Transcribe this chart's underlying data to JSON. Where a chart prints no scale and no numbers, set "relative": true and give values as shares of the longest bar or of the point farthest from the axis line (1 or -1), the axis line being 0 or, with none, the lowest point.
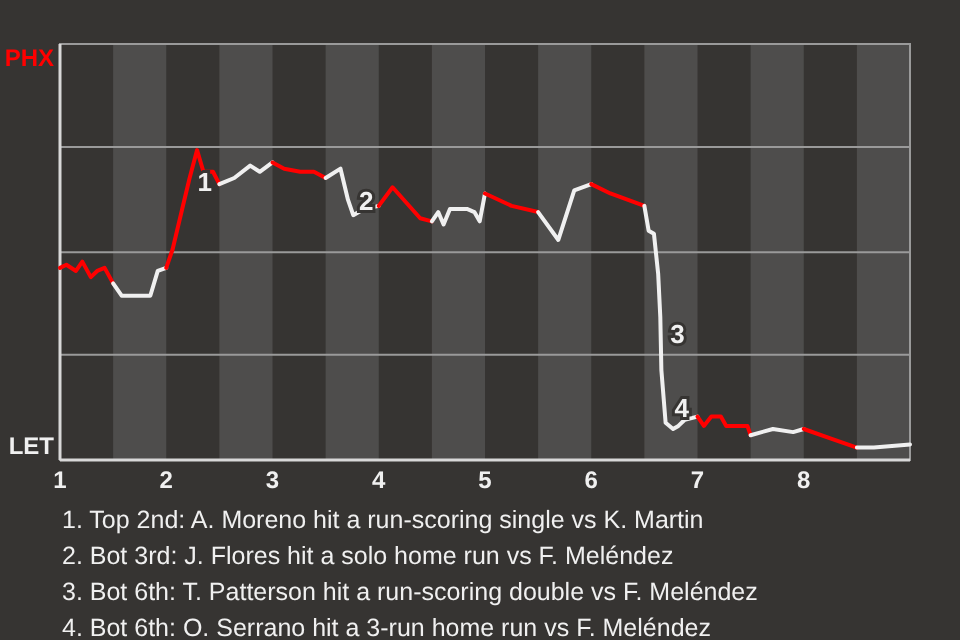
{
  "chart_data": {
    "type": "line",
    "relative": true,
    "xlim": [
      1,
      9
    ],
    "xticks": [
      1,
      2,
      3,
      4,
      5,
      6,
      7,
      8
    ],
    "ref_lines": [
      {
        "axis": "y",
        "value": 0.34,
        "color": "#9a9a9a"
      },
      {
        "axis": "y",
        "value": 0.67,
        "color": "#9a9a9a"
      },
      {
        "axis": "y",
        "value": 1.01,
        "color": "#9a9a9a"
      }
    ],
    "marker": "none",
    "line_style": "solid",
    "bands": [
      {
        "axis": "x",
        "from": 1.5,
        "to": 2,
        "color": "#4e4d4c"
      },
      {
        "axis": "x",
        "from": 2.5,
        "to": 3,
        "color": "#4e4d4c"
      },
      {
        "axis": "x",
        "from": 3.5,
        "to": 4,
        "color": "#4e4d4c"
      },
      {
        "axis": "x",
        "from": 4.5,
        "to": 5,
        "color": "#4e4d4c"
      },
      {
        "axis": "x",
        "from": 5.5,
        "to": 6,
        "color": "#4e4d4c"
      },
      {
        "axis": "x",
        "from": 6.5,
        "to": 7,
        "color": "#4e4d4c"
      },
      {
        "axis": "x",
        "from": 7.5,
        "to": 8,
        "color": "#4e4d4c"
      },
      {
        "axis": "x",
        "from": 8.5,
        "to": 9,
        "color": "#4e4d4c"
      }
    ],
    "series": [
      {
        "color": "#ff0000",
        "x": [
          1,
          1.06,
          1.15,
          1.21,
          1.29,
          1.35,
          1.42,
          1.5
        ],
        "values": [
          0.62,
          0.63,
          0.61,
          0.64,
          0.59,
          0.61,
          0.62,
          0.57
        ]
      },
      {
        "color": "#f0f0f0",
        "x": [
          1.5,
          1.58,
          1.85,
          1.92,
          2
        ],
        "values": [
          0.57,
          0.53,
          0.53,
          0.61,
          0.62
        ]
      },
      {
        "color": "#ff0000",
        "x": [
          2,
          2.06,
          2.15,
          2.22,
          2.29,
          2.35,
          2.44,
          2.5
        ],
        "values": [
          0.62,
          0.68,
          0.81,
          0.91,
          1,
          0.93,
          0.93,
          0.89
        ]
      },
      {
        "color": "#f0f0f0",
        "x": [
          2.5,
          2.64,
          2.79,
          2.88,
          3
        ],
        "values": [
          0.89,
          0.91,
          0.95,
          0.93,
          0.96
        ]
      },
      {
        "color": "#ff0000",
        "x": [
          3,
          3.11,
          3.26,
          3.39,
          3.5
        ],
        "values": [
          0.96,
          0.94,
          0.93,
          0.93,
          0.91
        ]
      },
      {
        "color": "#f0f0f0",
        "x": [
          3.5,
          3.64,
          3.71,
          3.76,
          3.86,
          4
        ],
        "values": [
          0.91,
          0.94,
          0.84,
          0.79,
          0.81,
          0.82
        ]
      },
      {
        "color": "#ff0000",
        "x": [
          4,
          4.13,
          4.26,
          4.39,
          4.5
        ],
        "values": [
          0.82,
          0.88,
          0.83,
          0.78,
          0.77
        ]
      },
      {
        "color": "#f0f0f0",
        "x": [
          4.5,
          4.56,
          4.61,
          4.67,
          4.83,
          4.9,
          4.95,
          5
        ],
        "values": [
          0.77,
          0.8,
          0.76,
          0.81,
          0.81,
          0.8,
          0.77,
          0.86
        ]
      },
      {
        "color": "#ff0000",
        "x": [
          5,
          5.25,
          5.5
        ],
        "values": [
          0.86,
          0.82,
          0.8
        ]
      },
      {
        "color": "#f0f0f0",
        "x": [
          5.5,
          5.69,
          5.84,
          6
        ],
        "values": [
          0.8,
          0.71,
          0.87,
          0.89
        ]
      },
      {
        "color": "#ff0000",
        "x": [
          6,
          6.18,
          6.5
        ],
        "values": [
          0.89,
          0.86,
          0.82
        ]
      },
      {
        "color": "#f0f0f0",
        "x": [
          6.5,
          6.54,
          6.59,
          6.63,
          6.65,
          6.66,
          6.7,
          6.77,
          6.82,
          6.88,
          7
        ],
        "values": [
          0.82,
          0.74,
          0.73,
          0.6,
          0.46,
          0.29,
          0.12,
          0.1,
          0.11,
          0.13,
          0.14
        ]
      },
      {
        "color": "#ff0000",
        "x": [
          7,
          7.06,
          7.13,
          7.22,
          7.27,
          7.47,
          7.5
        ],
        "values": [
          0.14,
          0.11,
          0.14,
          0.14,
          0.11,
          0.11,
          0.08
        ]
      },
      {
        "color": "#f0f0f0",
        "x": [
          7.5,
          7.71,
          7.9,
          8
        ],
        "values": [
          0.08,
          0.1,
          0.09,
          0.1
        ]
      },
      {
        "color": "#ff0000",
        "x": [
          8,
          8.25,
          8.5
        ],
        "values": [
          0.1,
          0.07,
          0.04
        ]
      },
      {
        "color": "#f0f0f0",
        "x": [
          8.5,
          8.66,
          9
        ],
        "values": [
          0.04,
          0.04,
          0.05
        ]
      }
    ],
    "annotations": [
      "PHX",
      "LET",
      {
        "text": "1",
        "x": 2.2,
        "y": 0.89
      },
      {
        "text": "2",
        "x": 3.72,
        "y": 0.83
      },
      {
        "text": "3",
        "x": 6.65,
        "y": 0.4
      },
      {
        "text": "4",
        "x": 6.69,
        "y": 0.16
      },
      "1. Top 2nd: A. Moreno hit a run-scoring single vs K. Martin",
      "2. Bot 3rd: J. Flores hit a solo home run vs F. Meléndez",
      "3. Bot 6th: T. Patterson hit a run-scoring double vs F. Meléndez",
      "4. Bot 6th: O. Serrano hit a 3-run home run vs F. Meléndez"
    ]
  }
}
